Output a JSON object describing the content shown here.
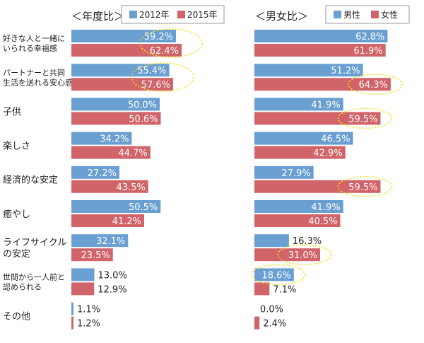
{
  "chart_data": [
    {
      "type": "bar",
      "orientation": "horizontal",
      "title": "＜年度比＞",
      "categories": [
        "好きな人と一緒にいられる幸福感",
        "パートナーと共同生活を送れる安心感",
        "子供",
        "楽しさ",
        "経済的な安定",
        "癒やし",
        "ライフサイクルの安定",
        "世間から一人前と認められる",
        "その他"
      ],
      "category_lines": [
        [
          "好きな人と一緒に",
          "いられる幸福感"
        ],
        [
          "パートナーと共同",
          "生活を送れる安心感"
        ],
        [
          "子供"
        ],
        [
          "楽しさ"
        ],
        [
          "経済的な安定"
        ],
        [
          "癒やし"
        ],
        [
          "ライフサイクル",
          "の安定"
        ],
        [
          "世間から一人前と",
          "認められる"
        ],
        [
          "その他"
        ]
      ],
      "series": [
        {
          "name": "2012年",
          "color": "#6a9fd2",
          "values": [
            59.2,
            55.4,
            50.0,
            34.2,
            27.2,
            50.5,
            32.1,
            13.0,
            1.1
          ],
          "labels": [
            "59.2%",
            "55.4%",
            "50.0%",
            "34.2%",
            "27.2%",
            "50.5%",
            "32.1%",
            "13.0%",
            "1.1%"
          ]
        },
        {
          "name": "2015年",
          "color": "#d06468",
          "values": [
            62.4,
            57.6,
            50.6,
            44.7,
            43.5,
            41.2,
            23.5,
            12.9,
            1.2
          ],
          "labels": [
            "62.4%",
            "57.6%",
            "50.6%",
            "44.7%",
            "43.5%",
            "41.2%",
            "23.5%",
            "12.9%",
            "1.2%"
          ]
        }
      ],
      "xlim": [
        0,
        100
      ],
      "legend_position": "top",
      "highlight_color": "#f2e01c",
      "highlights": [
        {
          "category_index": 0
        },
        {
          "category_index": 1
        }
      ]
    },
    {
      "type": "bar",
      "orientation": "horizontal",
      "title": "＜男女比＞",
      "categories": [
        "好きな人と一緒にいられる幸福感",
        "パートナーと共同生活を送れる安心感",
        "子供",
        "楽しさ",
        "経済的な安定",
        "癒やし",
        "ライフサイクルの安定",
        "世間から一人前と認められる",
        "その他"
      ],
      "series": [
        {
          "name": "男性",
          "color": "#6a9fd2",
          "values": [
            62.8,
            51.2,
            41.9,
            46.5,
            27.9,
            41.9,
            16.3,
            18.6,
            0.0
          ],
          "labels": [
            "62.8%",
            "51.2%",
            "41.9%",
            "46.5%",
            "27.9%",
            "41.9%",
            "16.3%",
            "18.6%",
            "0.0%"
          ]
        },
        {
          "name": "女性",
          "color": "#d06468",
          "values": [
            61.9,
            64.3,
            59.5,
            42.9,
            59.5,
            40.5,
            31.0,
            7.1,
            2.4
          ],
          "labels": [
            "61.9%",
            "64.3%",
            "59.5%",
            "42.9%",
            "59.5%",
            "40.5%",
            "31.0%",
            "7.1%",
            "2.4%"
          ]
        }
      ],
      "xlim": [
        0,
        100
      ],
      "legend_position": "top",
      "highlight_color": "#f2e01c",
      "highlights": [
        {
          "category_index": 1,
          "series_index": 1
        },
        {
          "category_index": 2,
          "series_index": 1
        },
        {
          "category_index": 4,
          "series_index": 1
        },
        {
          "category_index": 6,
          "series_index": 1
        },
        {
          "category_index": 7,
          "series_index": 0
        }
      ]
    }
  ]
}
